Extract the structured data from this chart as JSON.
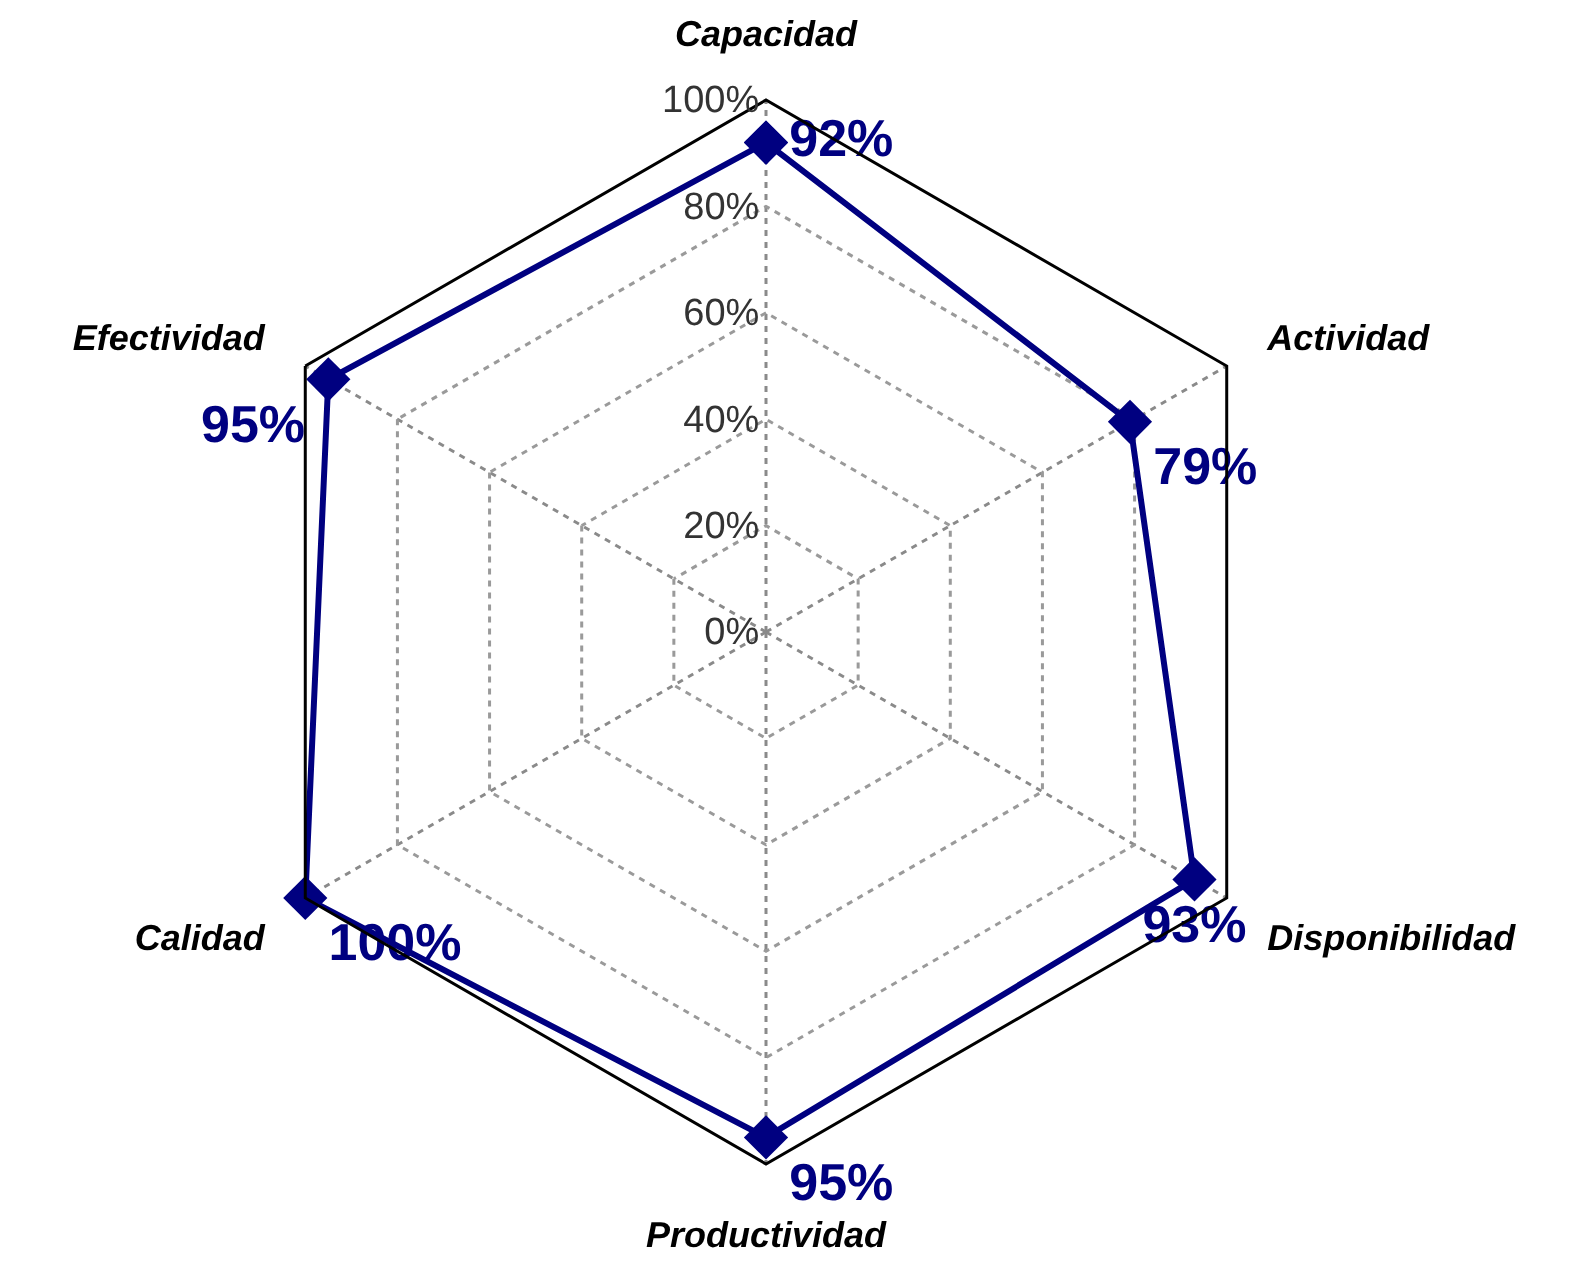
{
  "chart_data": {
    "type": "radar",
    "categories": [
      "Capacidad",
      "Actividad",
      "Disponibilidad",
      "Productividad",
      "Calidad",
      "Efectividad"
    ],
    "series": [
      {
        "color": "#000080",
        "values": [
          92,
          79,
          93,
          95,
          100,
          95
        ],
        "value_labels": [
          "92%",
          "79%",
          "93%",
          "95%",
          "100%",
          "95%"
        ]
      }
    ],
    "ylim": [
      0,
      100
    ],
    "yticks": [
      {
        "value": 0,
        "label": "0%"
      },
      {
        "value": 20,
        "label": "20%"
      },
      {
        "value": 40,
        "label": "40%"
      },
      {
        "value": 60,
        "label": "60%"
      },
      {
        "value": 80,
        "label": "80%"
      },
      {
        "value": 100,
        "label": "100%"
      }
    ],
    "grid": true,
    "marker": "diamond",
    "line_style": "solid"
  }
}
